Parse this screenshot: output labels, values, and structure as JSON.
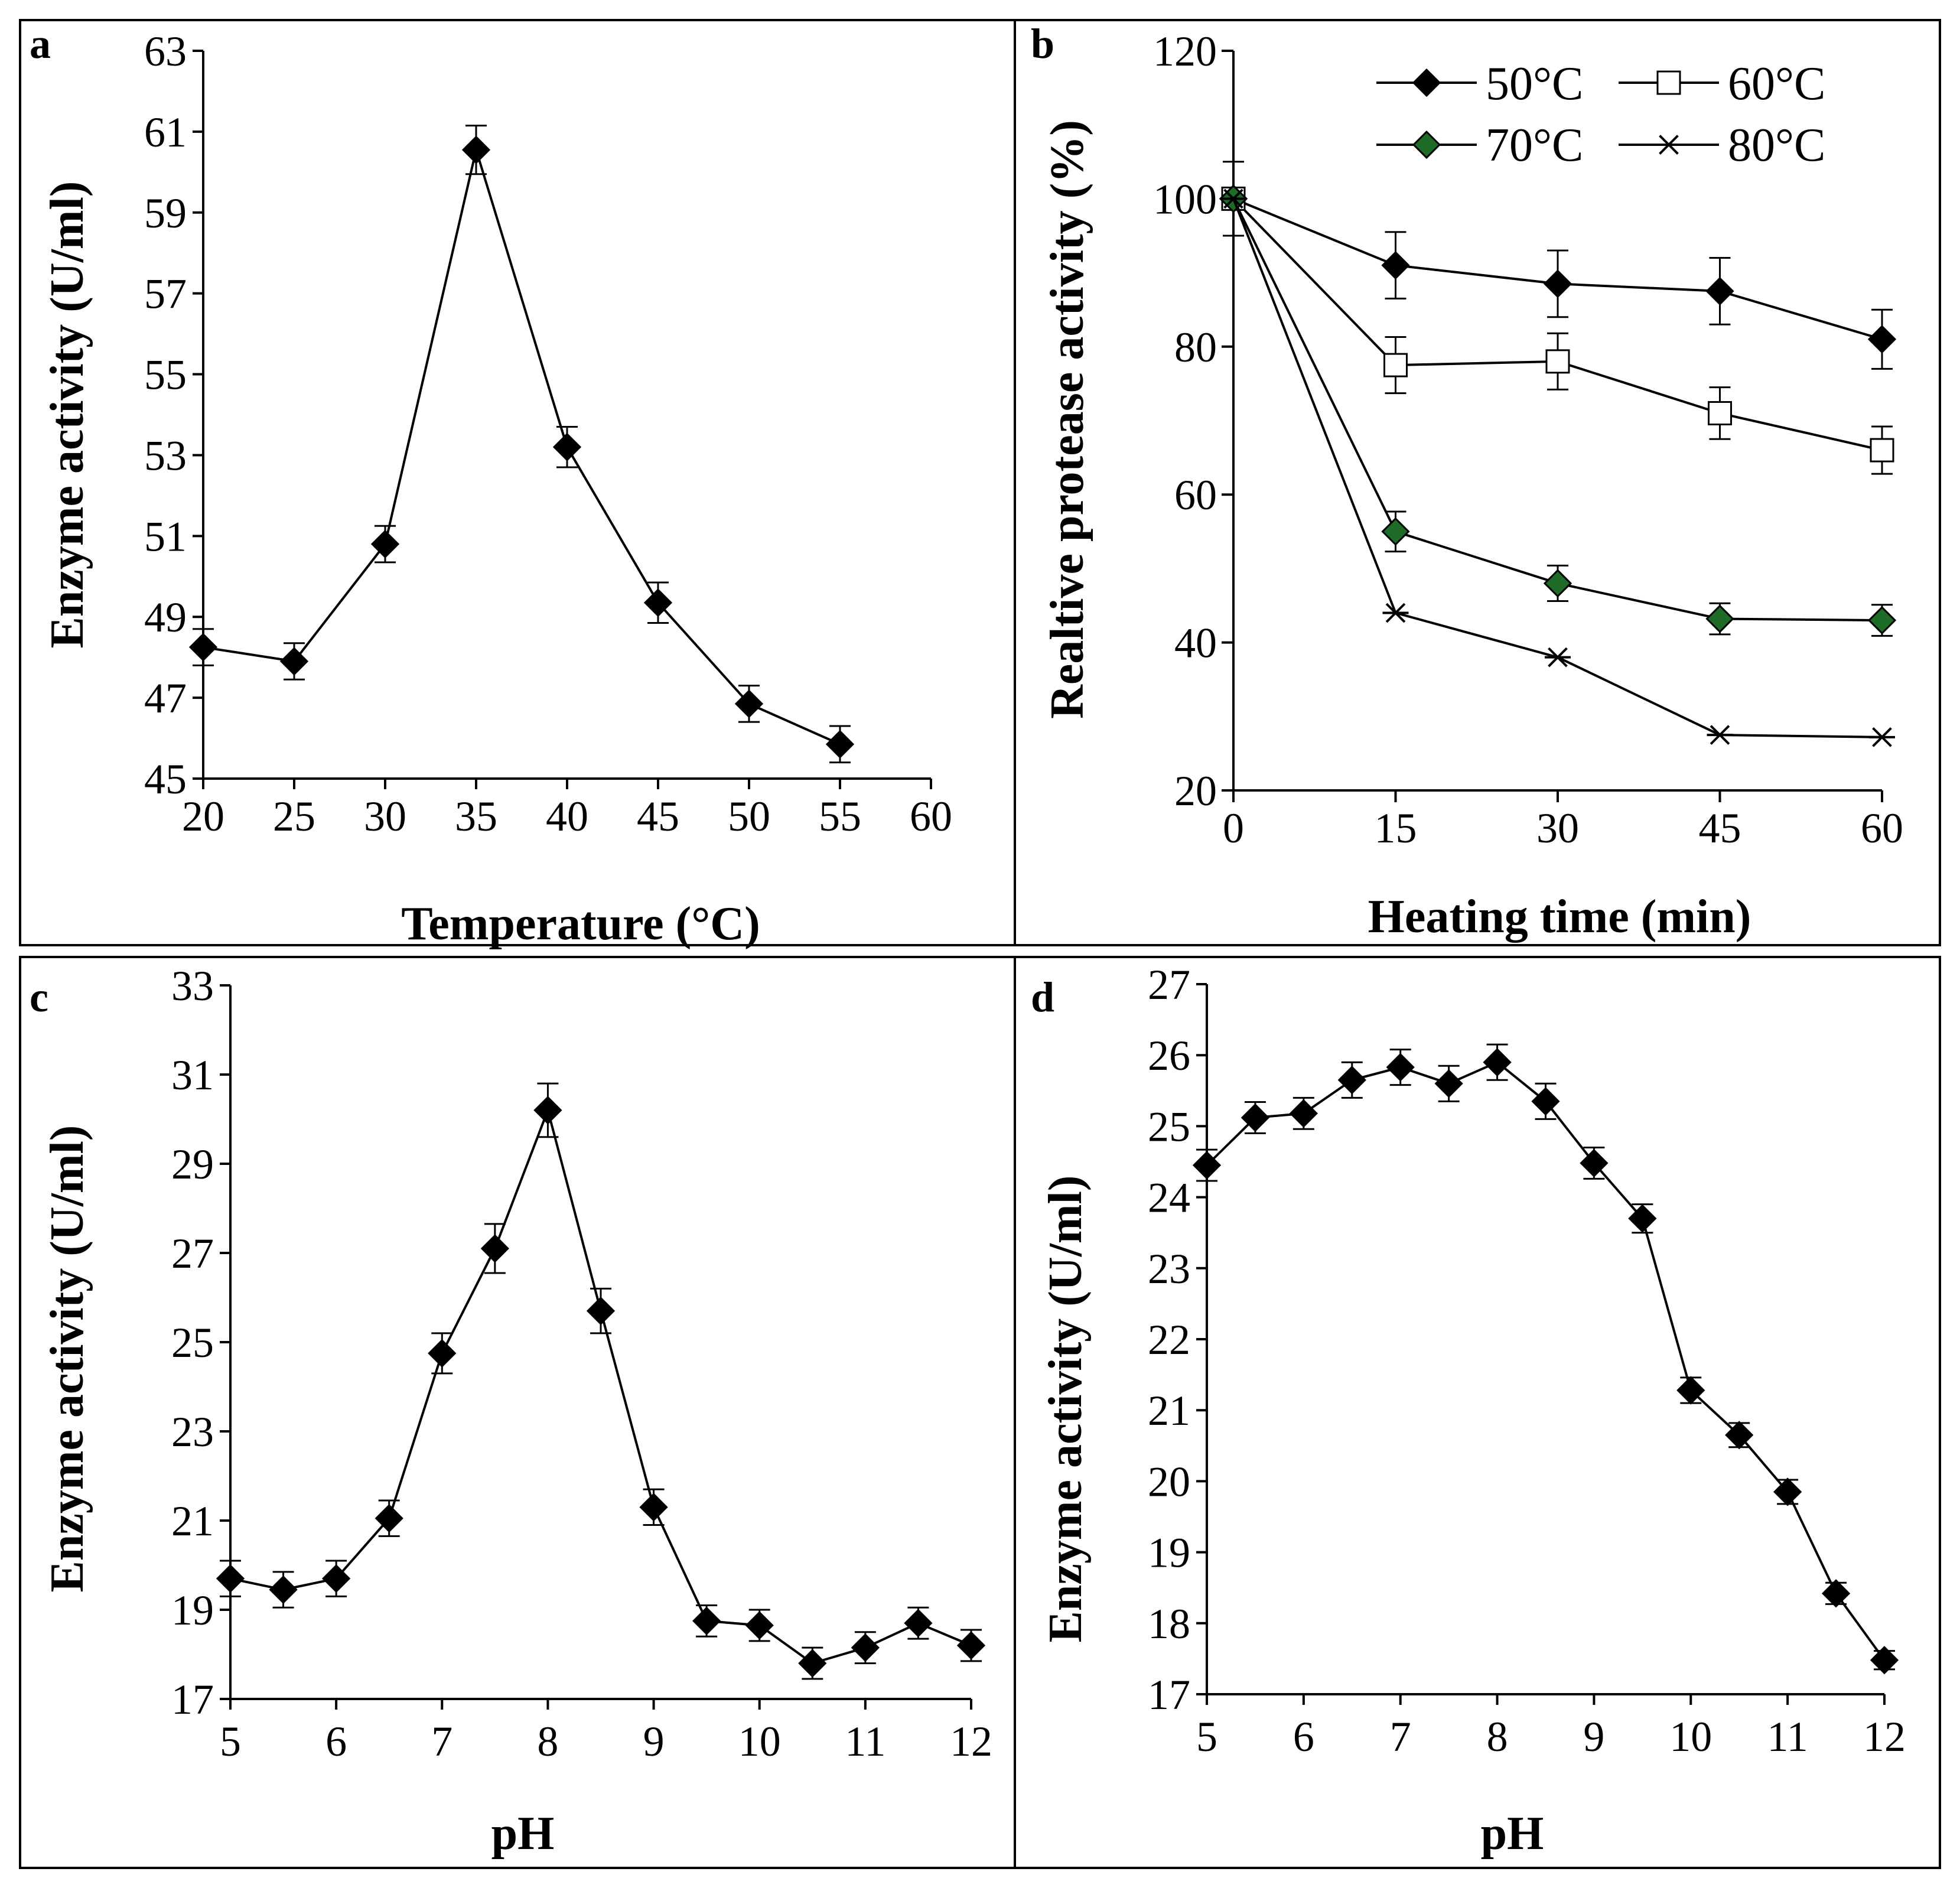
{
  "chart_data": [
    {
      "panel": "a",
      "type": "line",
      "xlabel": "Temperature (°C)",
      "ylabel": "Enzyme activity  (U/ml)",
      "xlim": [
        20,
        60
      ],
      "ylim": [
        45,
        63
      ],
      "xticks": [
        20,
        25,
        30,
        35,
        40,
        45,
        50,
        55,
        60
      ],
      "yticks": [
        45,
        47,
        49,
        51,
        53,
        55,
        57,
        59,
        61,
        63
      ],
      "series": [
        {
          "name": "activity",
          "marker": "diamond",
          "fill": "#000000",
          "points": [
            {
              "x": 20,
              "y": 48.25,
              "err": 0.45
            },
            {
              "x": 25,
              "y": 47.9,
              "err": 0.45
            },
            {
              "x": 30,
              "y": 50.8,
              "err": 0.45
            },
            {
              "x": 35,
              "y": 60.55,
              "err": 0.6
            },
            {
              "x": 40,
              "y": 53.2,
              "err": 0.5
            },
            {
              "x": 45,
              "y": 49.35,
              "err": 0.5
            },
            {
              "x": 50,
              "y": 46.85,
              "err": 0.45
            },
            {
              "x": 55,
              "y": 45.85,
              "err": 0.45
            }
          ]
        }
      ]
    },
    {
      "panel": "b",
      "type": "line",
      "xlabel": "Heating time (min)",
      "ylabel": "Realtive protease activity (%)",
      "xlim": [
        0,
        60
      ],
      "ylim": [
        20,
        120
      ],
      "xticks": [
        0,
        15,
        30,
        45,
        60
      ],
      "yticks": [
        20,
        40,
        60,
        80,
        100,
        120
      ],
      "legend_position": "top-right",
      "series": [
        {
          "name": "50°C",
          "marker": "diamond",
          "fill": "#000000",
          "points": [
            {
              "x": 0,
              "y": 100,
              "err": 5
            },
            {
              "x": 15,
              "y": 91,
              "err": 4.5
            },
            {
              "x": 30,
              "y": 88.5,
              "err": 4.5
            },
            {
              "x": 45,
              "y": 87.5,
              "err": 4.5
            },
            {
              "x": 60,
              "y": 81,
              "err": 4
            }
          ]
        },
        {
          "name": "60°C",
          "marker": "square",
          "fill": "#ffffff",
          "points": [
            {
              "x": 0,
              "y": 100,
              "err": 0
            },
            {
              "x": 15,
              "y": 77.5,
              "err": 3.8
            },
            {
              "x": 30,
              "y": 78,
              "err": 3.8
            },
            {
              "x": 45,
              "y": 71,
              "err": 3.5
            },
            {
              "x": 60,
              "y": 66,
              "err": 3.2
            }
          ]
        },
        {
          "name": "70°C",
          "marker": "diamond",
          "fill": "#1f6b28",
          "points": [
            {
              "x": 0,
              "y": 100,
              "err": 0
            },
            {
              "x": 15,
              "y": 55,
              "err": 2.7
            },
            {
              "x": 30,
              "y": 48,
              "err": 2.4
            },
            {
              "x": 45,
              "y": 43.2,
              "err": 2.1
            },
            {
              "x": 60,
              "y": 43,
              "err": 2.1
            }
          ]
        },
        {
          "name": "80°C",
          "marker": "asterisk",
          "fill": "#000000",
          "points": [
            {
              "x": 0,
              "y": 100,
              "err": 0
            },
            {
              "x": 15,
              "y": 44,
              "err": 0
            },
            {
              "x": 30,
              "y": 38,
              "err": 0
            },
            {
              "x": 45,
              "y": 27.5,
              "err": 0
            },
            {
              "x": 60,
              "y": 27.2,
              "err": 0
            }
          ]
        }
      ]
    },
    {
      "panel": "c",
      "type": "line",
      "xlabel": "pH",
      "ylabel": "Enzyme activity  (U/ml)",
      "xlim": [
        5,
        12
      ],
      "ylim": [
        17,
        33
      ],
      "xticks": [
        5,
        6,
        7,
        8,
        9,
        10,
        11,
        12
      ],
      "yticks": [
        17,
        19,
        21,
        23,
        25,
        27,
        29,
        31,
        33
      ],
      "series": [
        {
          "name": "activity",
          "marker": "diamond",
          "fill": "#000000",
          "points": [
            {
              "x": 5,
              "y": 19.7,
              "err": 0.4
            },
            {
              "x": 5.5,
              "y": 19.45,
              "err": 0.4
            },
            {
              "x": 6,
              "y": 19.7,
              "err": 0.4
            },
            {
              "x": 6.5,
              "y": 21.05,
              "err": 0.4
            },
            {
              "x": 7,
              "y": 24.75,
              "err": 0.45
            },
            {
              "x": 7.5,
              "y": 27.1,
              "err": 0.55
            },
            {
              "x": 8,
              "y": 30.2,
              "err": 0.6
            },
            {
              "x": 8.5,
              "y": 25.7,
              "err": 0.5
            },
            {
              "x": 9,
              "y": 21.3,
              "err": 0.4
            },
            {
              "x": 9.5,
              "y": 18.75,
              "err": 0.35
            },
            {
              "x": 10,
              "y": 18.65,
              "err": 0.35
            },
            {
              "x": 10.5,
              "y": 17.8,
              "err": 0.35
            },
            {
              "x": 11,
              "y": 18.15,
              "err": 0.35
            },
            {
              "x": 11.5,
              "y": 18.7,
              "err": 0.35
            },
            {
              "x": 12,
              "y": 18.2,
              "err": 0.35
            }
          ]
        }
      ]
    },
    {
      "panel": "d",
      "type": "line",
      "xlabel": "pH",
      "ylabel": "Enzyme activity  (U/ml)",
      "xlim": [
        5,
        12
      ],
      "ylim": [
        17,
        27
      ],
      "xticks": [
        5,
        6,
        7,
        8,
        9,
        10,
        11,
        12
      ],
      "yticks": [
        17,
        18,
        19,
        20,
        21,
        22,
        23,
        24,
        25,
        26,
        27
      ],
      "series": [
        {
          "name": "activity",
          "marker": "diamond",
          "fill": "#000000",
          "points": [
            {
              "x": 5,
              "y": 24.45,
              "err": 0.22
            },
            {
              "x": 5.5,
              "y": 25.12,
              "err": 0.22
            },
            {
              "x": 6,
              "y": 25.18,
              "err": 0.22
            },
            {
              "x": 6.5,
              "y": 25.65,
              "err": 0.25
            },
            {
              "x": 7,
              "y": 25.83,
              "err": 0.25
            },
            {
              "x": 7.5,
              "y": 25.6,
              "err": 0.25
            },
            {
              "x": 8,
              "y": 25.9,
              "err": 0.25
            },
            {
              "x": 8.5,
              "y": 25.35,
              "err": 0.25
            },
            {
              "x": 9,
              "y": 24.48,
              "err": 0.22
            },
            {
              "x": 9.5,
              "y": 23.7,
              "err": 0.2
            },
            {
              "x": 10,
              "y": 21.28,
              "err": 0.18
            },
            {
              "x": 10.5,
              "y": 20.65,
              "err": 0.17
            },
            {
              "x": 11,
              "y": 19.85,
              "err": 0.17
            },
            {
              "x": 11.5,
              "y": 18.42,
              "err": 0.15
            },
            {
              "x": 12,
              "y": 17.48,
              "err": 0.13
            }
          ]
        }
      ]
    }
  ]
}
